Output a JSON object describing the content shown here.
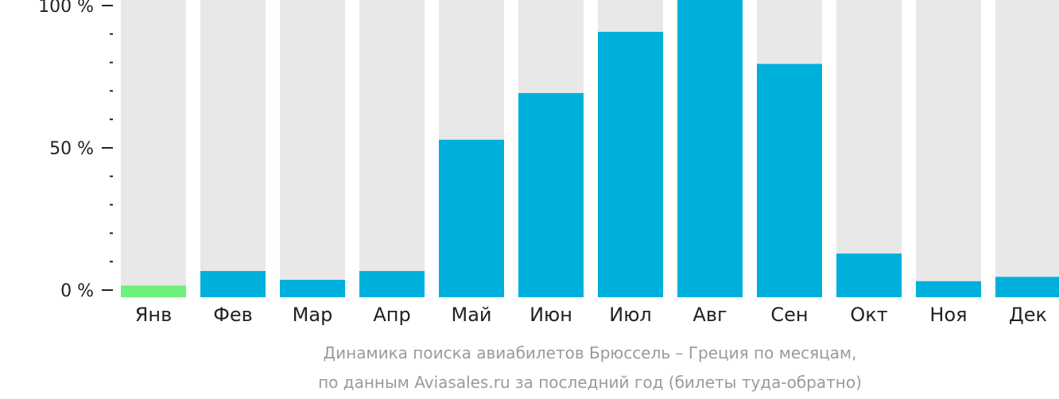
{
  "chart_data": {
    "type": "bar",
    "categories": [
      "Янв",
      "Фев",
      "Мар",
      "Апр",
      "Май",
      "Июн",
      "Июл",
      "Авг",
      "Сен",
      "Окт",
      "Ноя",
      "Дек"
    ],
    "values": [
      4,
      9,
      6,
      9,
      54,
      70,
      91,
      103,
      80,
      15,
      5.5,
      7
    ],
    "highlight_index": 0,
    "ylim": [
      0,
      100
    ],
    "y_major_ticks": [
      {
        "value": 0,
        "label": "0 %"
      },
      {
        "value": 50,
        "label": "50 %"
      },
      {
        "value": 100,
        "label": "100 %"
      }
    ],
    "y_minor_step": 10,
    "caption": [
      "Динамика поиска авиабилетов Брюссель – Греция по месяцам,",
      "по данным Aviasales.ru за последний год (билеты туда-обратно)"
    ],
    "colors": {
      "bar": "#00b0dc",
      "highlight": "#6ef07d",
      "background_column": "#e8e8e8",
      "axis": "#222222",
      "caption": "#9a9a9a"
    }
  }
}
